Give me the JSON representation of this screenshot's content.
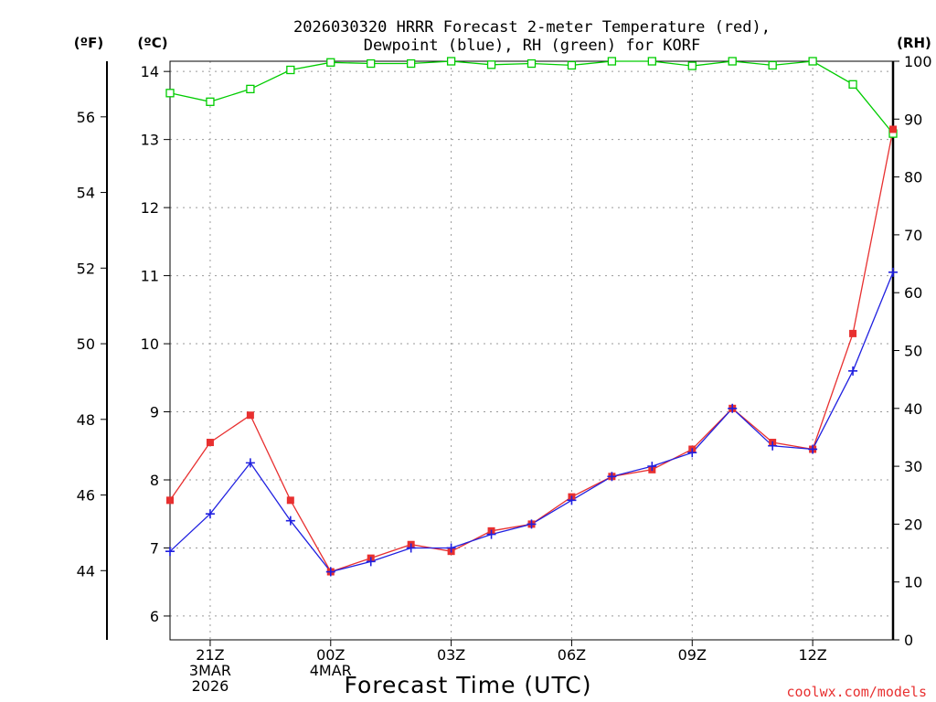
{
  "chart_data": {
    "type": "line",
    "title_line1": "2026030320 HRRR Forecast 2-meter Temperature (red),",
    "title_line2": "Dewpoint (blue), RH (green) for KORF",
    "xlabel": "Forecast Time (UTC)",
    "credit": "coolwx.com/models",
    "units": {
      "fahrenheit": "(ºF)",
      "celsius": "(ºC)",
      "rh": "(RH)"
    },
    "colors": {
      "temperature": "#e83030",
      "dewpoint": "#2020e0",
      "rh": "#00cc00"
    },
    "x_hours": [
      0,
      1,
      2,
      3,
      4,
      5,
      6,
      7,
      8,
      9,
      10,
      11,
      12,
      13,
      14,
      15,
      16,
      17,
      18
    ],
    "x_range": [
      0,
      18
    ],
    "ylim_celsius": [
      5.65,
      14.15
    ],
    "ylim_rh": [
      0,
      100
    ],
    "y_ticks_celsius": [
      6,
      7,
      8,
      9,
      10,
      11,
      12,
      13,
      14
    ],
    "y_ticks_fahrenheit": [
      44,
      46,
      48,
      50,
      52,
      54,
      56
    ],
    "y_ticks_rh": [
      0,
      10,
      20,
      30,
      40,
      50,
      60,
      70,
      80,
      90,
      100
    ],
    "x_ticks": [
      {
        "hour": 1,
        "lines": [
          "21Z",
          "3MAR",
          "2026"
        ]
      },
      {
        "hour": 4,
        "lines": [
          "00Z",
          "4MAR"
        ]
      },
      {
        "hour": 7,
        "lines": [
          "03Z"
        ]
      },
      {
        "hour": 10,
        "lines": [
          "06Z"
        ]
      },
      {
        "hour": 13,
        "lines": [
          "09Z"
        ]
      },
      {
        "hour": 16,
        "lines": [
          "12Z"
        ]
      }
    ],
    "series": [
      {
        "name": "Temperature",
        "unit": "C",
        "values": [
          7.7,
          8.55,
          8.95,
          7.7,
          6.65,
          6.85,
          7.05,
          6.95,
          7.25,
          7.35,
          7.75,
          8.05,
          8.15,
          8.45,
          9.05,
          8.55,
          8.45,
          10.15,
          13.15
        ]
      },
      {
        "name": "Dewpoint",
        "unit": "C",
        "values": [
          6.95,
          7.5,
          8.25,
          7.4,
          6.65,
          6.8,
          7.0,
          7.0,
          7.2,
          7.35,
          7.7,
          8.05,
          8.2,
          8.4,
          9.05,
          8.5,
          8.45,
          9.6,
          11.05
        ]
      },
      {
        "name": "RH",
        "unit": "%",
        "values": [
          94.5,
          93,
          95.2,
          98.5,
          99.8,
          99.6,
          99.6,
          100,
          99.4,
          99.6,
          99.3,
          100,
          100,
          99.2,
          100,
          99.3,
          100,
          96,
          87.5
        ]
      }
    ]
  }
}
